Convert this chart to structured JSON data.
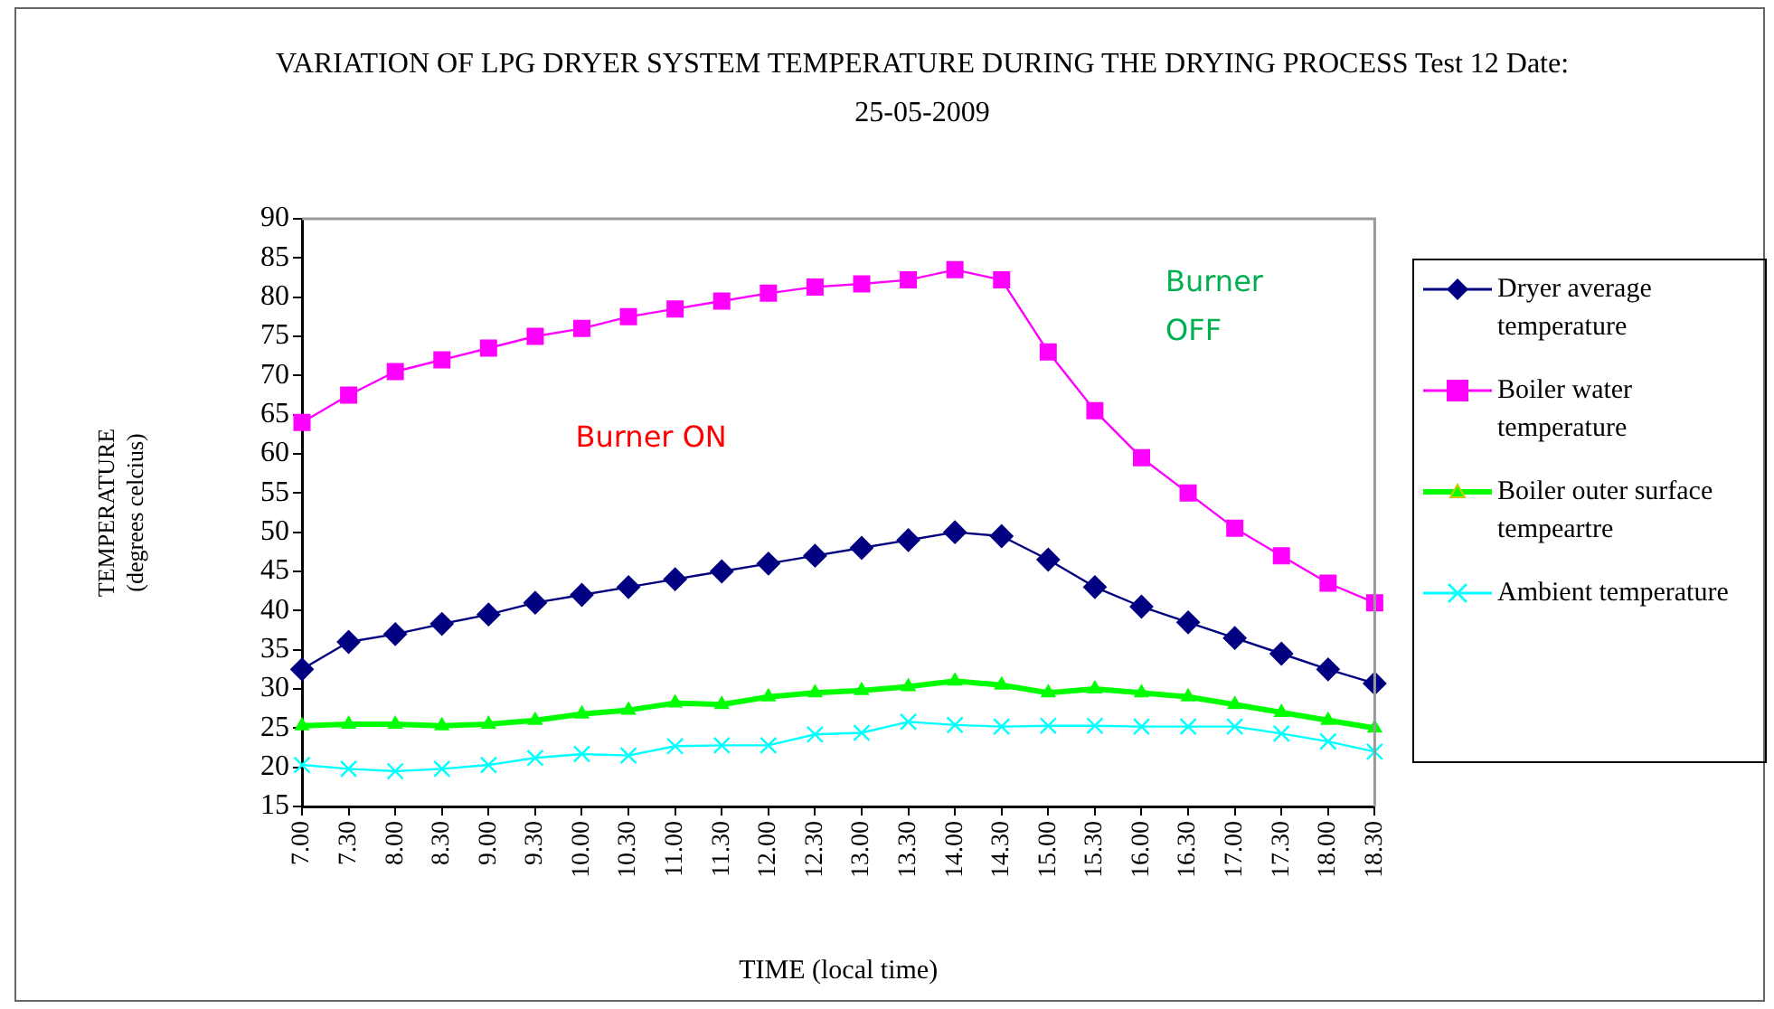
{
  "chart_data": {
    "type": "line",
    "title": "VARIATION OF LPG DRYER SYSTEM TEMPERATURE DURING THE DRYING PROCESS   Test 12  Date: 25-05-2009",
    "xlabel": "TIME (local time)",
    "ylabel": "TEMPERATURE (degrees celcius)",
    "categories": [
      "7.00",
      "7.30",
      "8.00",
      "8.30",
      "9.00",
      "9.30",
      "10.00",
      "10.30",
      "11.00",
      "11.30",
      "12.00",
      "12.30",
      "13.00",
      "13.30",
      "14.00",
      "14.30",
      "15.00",
      "15.30",
      "16.00",
      "16.30",
      "17.00",
      "17.30",
      "18.00",
      "18.30"
    ],
    "series": [
      {
        "name": "Dryer average temperature",
        "color": "#000080",
        "marker": "diamond",
        "values": [
          32.5,
          36,
          37,
          38.3,
          39.5,
          41,
          42,
          43,
          44,
          45,
          46,
          47,
          48,
          49,
          50,
          49.5,
          46.5,
          43,
          40.5,
          38.5,
          36.5,
          34.5,
          32.5,
          30.7
        ]
      },
      {
        "name": "Boiler water temperature",
        "color": "#ff00ff",
        "marker": "square",
        "values": [
          64,
          67.5,
          70.5,
          72,
          73.5,
          75,
          76,
          77.5,
          78.5,
          79.5,
          80.5,
          81.3,
          81.7,
          82.2,
          83.5,
          82.2,
          73,
          65.5,
          59.5,
          55,
          50.5,
          47,
          43.5,
          41
        ]
      },
      {
        "name": "Boiler outer surface tempeartre",
        "color": "#00ff00",
        "marker": "triangle",
        "values": [
          25.3,
          25.5,
          25.5,
          25.3,
          25.5,
          26,
          26.8,
          27.3,
          28.2,
          28,
          29,
          29.5,
          29.8,
          30.3,
          31,
          30.5,
          29.5,
          30,
          29.5,
          29,
          28,
          27,
          26,
          25
        ]
      },
      {
        "name": "Ambient temperature",
        "color": "#00ffff",
        "marker": "cross",
        "values": [
          20.3,
          19.8,
          19.5,
          19.8,
          20.3,
          21.2,
          21.7,
          21.5,
          22.7,
          22.8,
          22.8,
          24.2,
          24.4,
          25.8,
          25.4,
          25.2,
          25.3,
          25.3,
          25.2,
          25.2,
          25.2,
          24.3,
          23.3,
          22
        ]
      }
    ],
    "ylim": [
      15,
      90
    ],
    "yticks": [
      15,
      20,
      25,
      30,
      35,
      40,
      45,
      50,
      55,
      60,
      65,
      70,
      75,
      80,
      85,
      90
    ],
    "legend": "right",
    "line_style": "solid",
    "annotations": [
      "Burner ON",
      "Burner OFF"
    ]
  }
}
